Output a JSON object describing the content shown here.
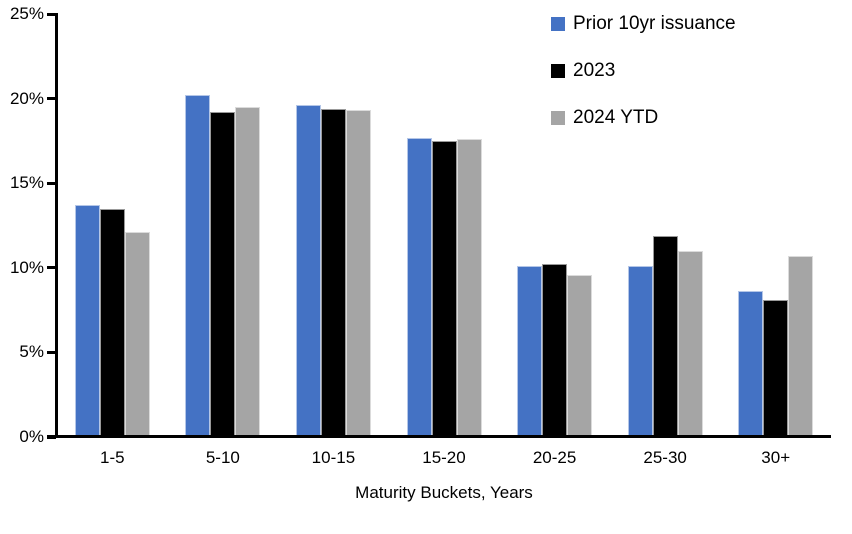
{
  "chart_data": {
    "type": "bar",
    "title": "",
    "xlabel": "Maturity Buckets, Years",
    "ylabel": "",
    "categories": [
      "1-5",
      "5-10",
      "10-15",
      "15-20",
      "20-25",
      "25-30",
      "30+"
    ],
    "series": [
      {
        "name": "Prior 10yr issuance",
        "color": "#4472C4",
        "values": [
          13.7,
          20.2,
          19.6,
          17.7,
          10.1,
          10.1,
          8.6
        ]
      },
      {
        "name": "2023",
        "color": "#000000",
        "values": [
          13.5,
          19.2,
          19.4,
          17.5,
          10.2,
          11.9,
          8.1
        ]
      },
      {
        "name": "2024 YTD",
        "color": "#A5A5A5",
        "values": [
          12.1,
          19.5,
          19.3,
          17.6,
          9.6,
          11.0,
          10.7
        ]
      }
    ],
    "ylim": [
      0,
      25
    ],
    "yticks": [
      {
        "value": 0,
        "label": "0%"
      },
      {
        "value": 5,
        "label": "5%"
      },
      {
        "value": 10,
        "label": "10%"
      },
      {
        "value": 15,
        "label": "15%"
      },
      {
        "value": 20,
        "label": "20%"
      },
      {
        "value": 25,
        "label": "25%"
      }
    ],
    "legend_position": "top-right",
    "grid": false,
    "axis_color": "#000000",
    "background_color": "#FFFFFF"
  }
}
